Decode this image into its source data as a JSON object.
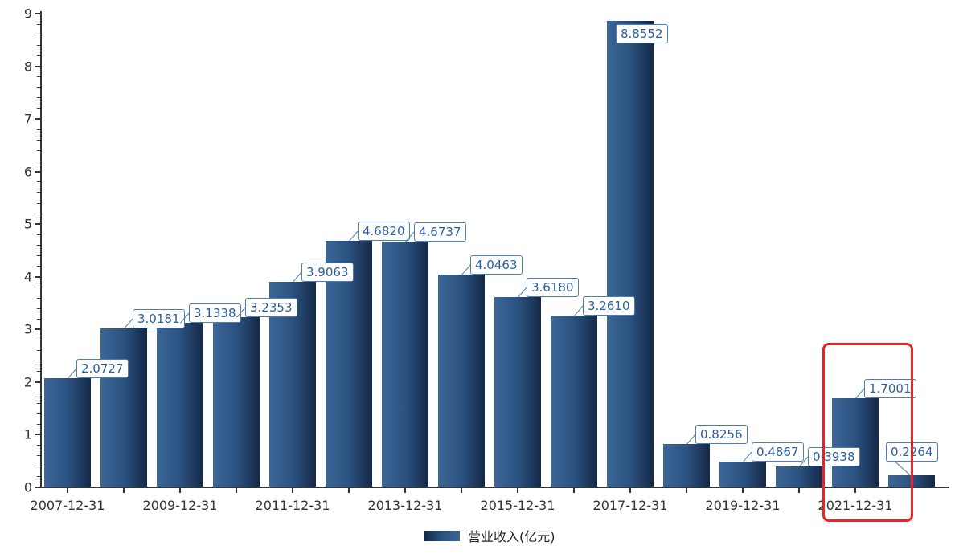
{
  "chart_data": {
    "type": "bar",
    "title": "",
    "xlabel": "",
    "ylabel": "",
    "ylim": [
      0,
      9
    ],
    "y_ticks": [
      0,
      1,
      2,
      3,
      4,
      5,
      6,
      7,
      8,
      9
    ],
    "y_minor_tick_step": 0.2,
    "grid": false,
    "series": [
      {
        "name": "营业收入(亿元)",
        "values": [
          2.0727,
          3.0181,
          3.1338,
          3.2353,
          3.9063,
          4.682,
          4.6737,
          4.0463,
          3.618,
          3.261,
          8.8552,
          0.8256,
          0.4867,
          0.3938,
          1.7001,
          0.2264
        ]
      }
    ],
    "value_labels": [
      "2.0727",
      "3.0181",
      "3.1338",
      "3.2353",
      "3.9063",
      "4.6820",
      "4.6737",
      "4.0463",
      "3.6180",
      "3.2610",
      "8.8552",
      "0.8256",
      "0.4867",
      "0.3938",
      "1.7001",
      "0.2264"
    ],
    "x_tick_labels": [
      "2007-12-31",
      "2009-12-31",
      "2011-12-31",
      "2013-12-31",
      "2015-12-31",
      "2017-12-31",
      "2019-12-31",
      "2021-12-31"
    ],
    "x_tick_every_n_bars": 2,
    "legend": {
      "label": "营业收入(亿元)",
      "position": "bottom-center"
    },
    "colors": {
      "bar_gradient_left": "#3c6697",
      "bar_gradient_right": "#152948",
      "label_text": "#2c5f9b",
      "label_border": "#4d7db8",
      "axis": "#333333",
      "highlight_box": "#ee2222",
      "background": "#ffffff"
    },
    "annotation": {
      "shape": "rounded-rect",
      "border_color": "#ee2222",
      "highlights": "2021-12-31 bar (1.7001) and its axis label"
    }
  }
}
